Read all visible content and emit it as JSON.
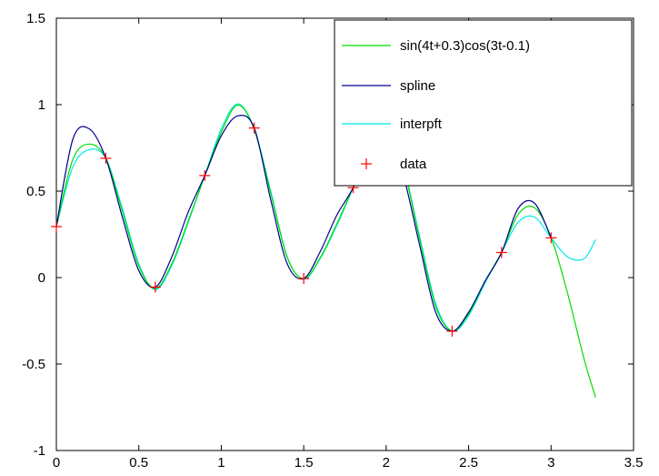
{
  "chart_data": {
    "type": "line",
    "xlim": [
      0,
      3.5
    ],
    "ylim": [
      -1,
      1.5
    ],
    "xticks": [
      "0",
      "0.5",
      "1",
      "1.5",
      "2",
      "2.5",
      "3",
      "3.5"
    ],
    "yticks": [
      "-1",
      "-0.5",
      "0",
      "0.5",
      "1",
      "1.5"
    ],
    "grid": false,
    "legend_position": "top-right",
    "series": [
      {
        "name": "sin(4t+0.3)cos(3t-0.1)",
        "color": "#00dd00",
        "style": "line",
        "x": [
          0,
          0.1,
          0.2,
          0.3,
          0.4,
          0.5,
          0.6,
          0.7,
          0.8,
          0.9,
          1.0,
          1.1,
          1.2,
          1.3,
          1.4,
          1.5,
          1.6,
          1.7,
          1.8,
          1.9,
          2.0,
          2.1,
          2.2,
          2.3,
          2.4,
          2.5,
          2.6,
          2.7,
          2.8,
          2.9,
          3.0,
          3.1,
          3.2,
          3.27
        ],
        "y": [
          0.295,
          0.683,
          0.772,
          0.69,
          0.383,
          0.067,
          -0.064,
          0.08,
          0.328,
          0.59,
          0.84,
          0.998,
          0.856,
          0.488,
          0.117,
          -0.007,
          0.115,
          0.31,
          0.522,
          0.747,
          0.834,
          0.652,
          0.235,
          -0.166,
          -0.308,
          -0.21,
          -0.021,
          0.147,
          0.365,
          0.404,
          0.233,
          -0.091,
          -0.471,
          -0.693
        ]
      },
      {
        "name": "spline",
        "color": "#000090",
        "style": "line",
        "x": [
          0,
          0.1,
          0.2,
          0.3,
          0.4,
          0.5,
          0.6,
          0.7,
          0.8,
          0.9,
          1.0,
          1.1,
          1.2,
          1.3,
          1.4,
          1.5,
          1.6,
          1.7,
          1.8,
          1.9,
          2.0,
          2.1,
          2.2,
          2.3,
          2.4,
          2.5,
          2.6,
          2.7,
          2.8,
          2.9,
          3.0
        ],
        "y": [
          0.295,
          0.8,
          0.86,
          0.69,
          0.35,
          0.04,
          -0.055,
          0.12,
          0.38,
          0.59,
          0.82,
          0.935,
          0.865,
          0.45,
          0.08,
          -0.005,
          0.15,
          0.36,
          0.52,
          0.74,
          0.78,
          0.6,
          0.2,
          -0.2,
          -0.31,
          -0.2,
          -0.02,
          0.145,
          0.4,
          0.43,
          0.23
        ]
      },
      {
        "name": "interpft",
        "color": "#00e8e8",
        "style": "line",
        "x": [
          0,
          0.1,
          0.2,
          0.3,
          0.4,
          0.5,
          0.6,
          0.7,
          0.8,
          0.9,
          1.0,
          1.1,
          1.2,
          1.3,
          1.4,
          1.5,
          1.6,
          1.7,
          1.8,
          1.9,
          2.0,
          2.1,
          2.2,
          2.3,
          2.4,
          2.5,
          2.6,
          2.7,
          2.8,
          2.9,
          3.0,
          3.1,
          3.2,
          3.27
        ],
        "y": [
          0.295,
          0.64,
          0.74,
          0.69,
          0.4,
          0.08,
          -0.07,
          0.07,
          0.32,
          0.59,
          0.86,
          1.005,
          0.86,
          0.5,
          0.12,
          -0.01,
          0.11,
          0.3,
          0.52,
          0.76,
          0.845,
          0.66,
          0.25,
          -0.15,
          -0.31,
          -0.22,
          -0.03,
          0.145,
          0.32,
          0.35,
          0.23,
          0.12,
          0.11,
          0.22
        ]
      },
      {
        "name": "data",
        "color": "#ff0000",
        "style": "marker",
        "x": [
          0,
          0.3,
          0.6,
          0.9,
          1.2,
          1.5,
          1.8,
          1.85,
          2.4,
          2.7,
          3.0
        ],
        "y": [
          0.295,
          0.69,
          -0.055,
          0.59,
          0.865,
          -0.005,
          0.52,
          0.665,
          -0.31,
          0.145,
          0.23
        ]
      }
    ]
  }
}
